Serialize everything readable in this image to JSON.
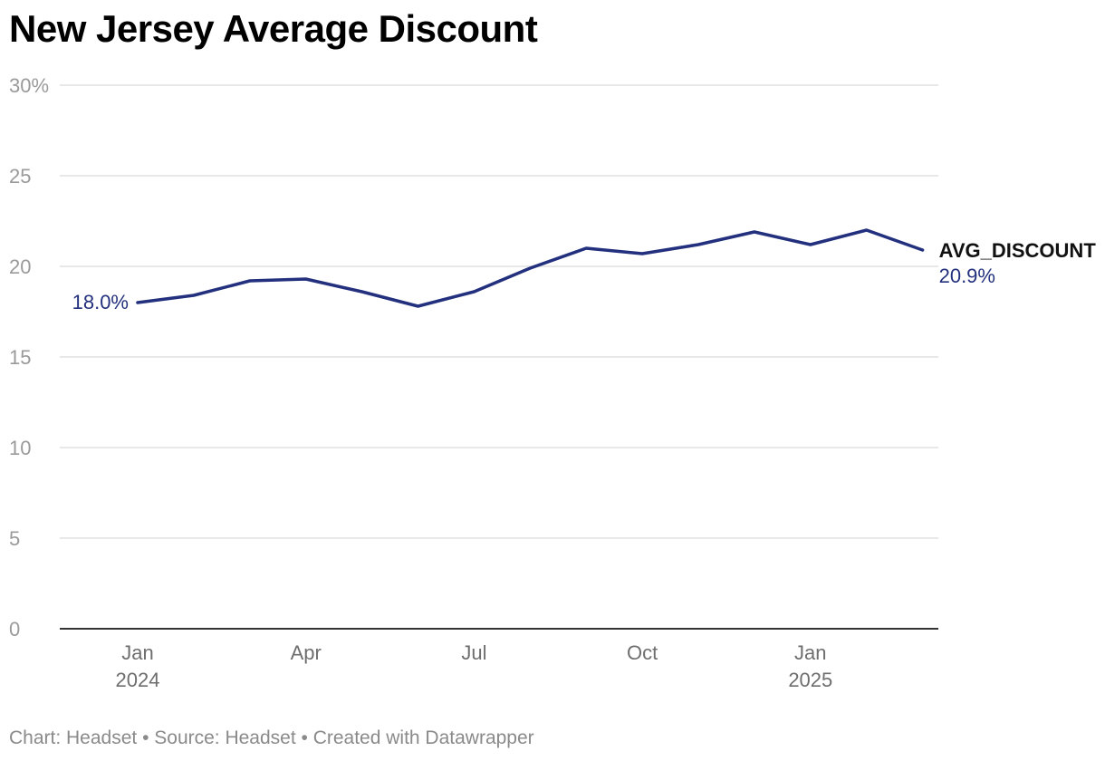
{
  "title": "New Jersey Average Discount",
  "footer": "Chart: Headset • Source: Headset • Created with Datawrapper",
  "colors": {
    "line": "#23307d",
    "grid": "#e0e0e0",
    "axis": "#333333"
  },
  "chart_data": {
    "type": "line",
    "title": "New Jersey Average Discount",
    "xlabel": "",
    "ylabel": "",
    "ylim": [
      0,
      30
    ],
    "y_ticks": [
      {
        "value": 30,
        "label": "30%"
      },
      {
        "value": 25,
        "label": "25"
      },
      {
        "value": 20,
        "label": "20"
      },
      {
        "value": 15,
        "label": "15"
      },
      {
        "value": 10,
        "label": "10"
      },
      {
        "value": 5,
        "label": "5"
      },
      {
        "value": 0,
        "label": "0"
      }
    ],
    "x_ticks": [
      {
        "date": "2024-01",
        "label": "Jan",
        "year": "2024"
      },
      {
        "date": "2024-04",
        "label": "Apr",
        "year": ""
      },
      {
        "date": "2024-07",
        "label": "Jul",
        "year": ""
      },
      {
        "date": "2024-10",
        "label": "Oct",
        "year": ""
      },
      {
        "date": "2025-01",
        "label": "Jan",
        "year": "2025"
      }
    ],
    "grid": true,
    "series": [
      {
        "name": "AVG_DISCOUNT",
        "x": [
          "2024-01",
          "2024-02",
          "2024-03",
          "2024-04",
          "2024-05",
          "2024-06",
          "2024-07",
          "2024-08",
          "2024-09",
          "2024-10",
          "2024-11",
          "2024-12",
          "2025-01",
          "2025-02",
          "2025-03"
        ],
        "values": [
          18.0,
          18.4,
          19.2,
          19.3,
          18.6,
          17.8,
          18.6,
          19.9,
          21.0,
          20.7,
          21.2,
          21.9,
          21.2,
          22.0,
          20.9
        ],
        "start_label": "18.0%",
        "end_label": "20.9%"
      }
    ]
  }
}
